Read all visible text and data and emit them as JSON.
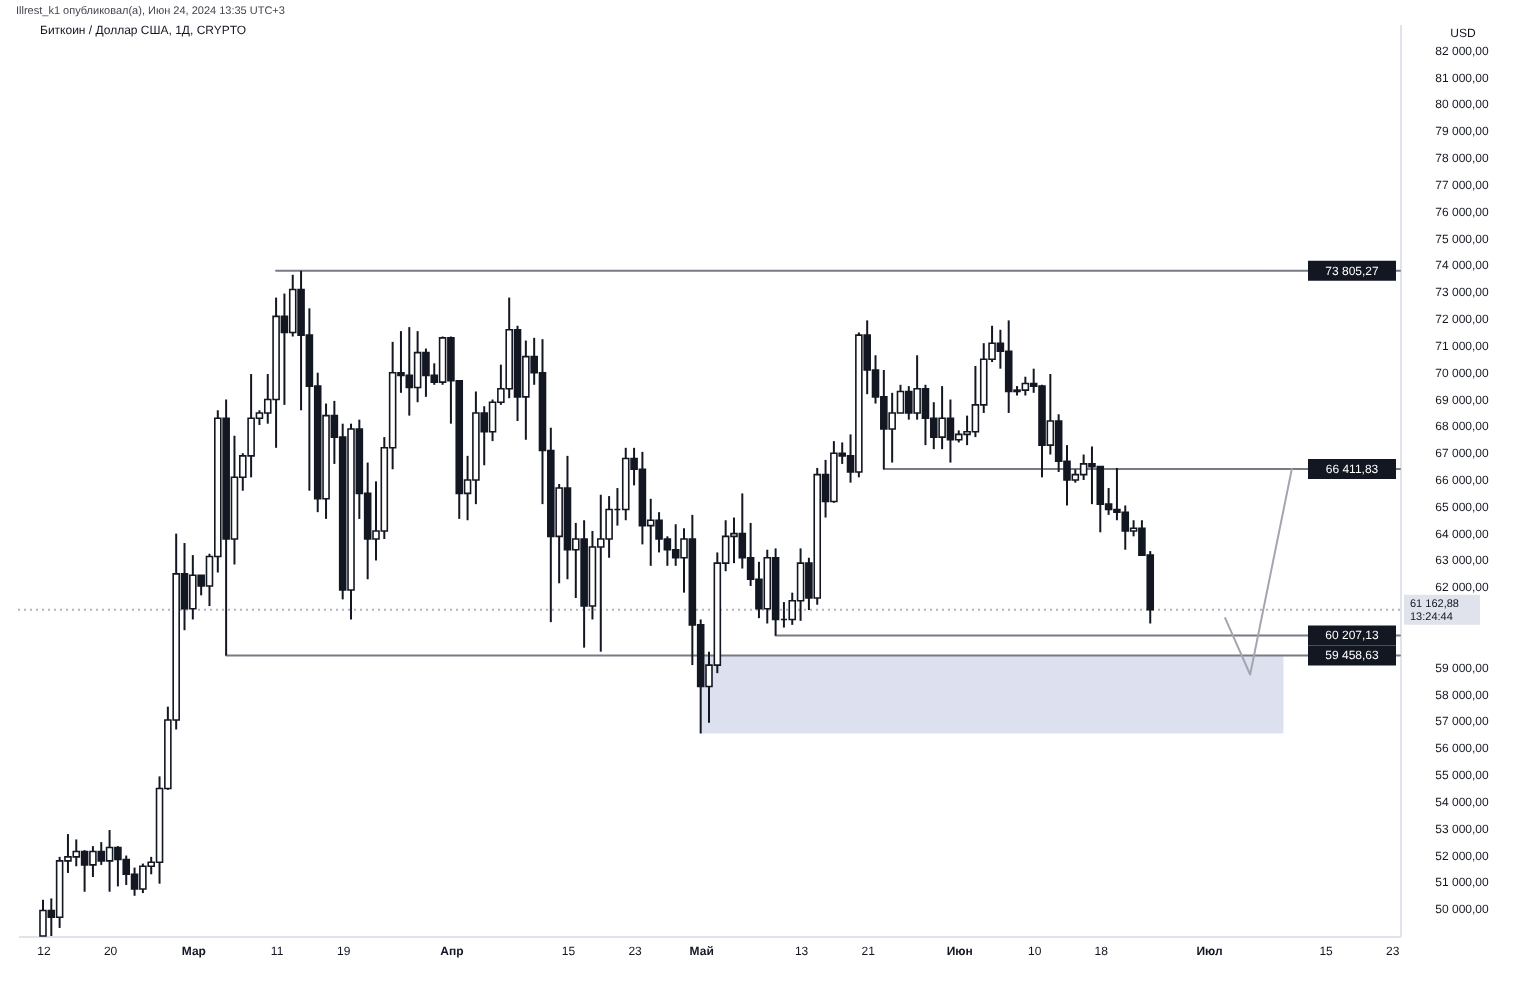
{
  "chart_data": {
    "type": "candlestick",
    "title": "Биткоин / Доллар США, 1Д, CRYPTO",
    "ylabel": "USD",
    "annotations": [
      "Illrest_k1 опубликовал(а), Июн 24, 2024 13:35 UTC+3"
    ],
    "color": "#131722",
    "x": [
      "2024-02-12",
      "2024-02-13",
      "2024-02-14",
      "2024-02-15",
      "2024-02-16",
      "2024-02-17",
      "2024-02-18",
      "2024-02-19",
      "2024-02-20",
      "2024-02-21",
      "2024-02-22",
      "2024-02-23",
      "2024-02-24",
      "2024-02-25",
      "2024-02-26",
      "2024-02-27",
      "2024-02-28",
      "2024-02-29",
      "2024-03-01",
      "2024-03-02",
      "2024-03-03",
      "2024-03-04",
      "2024-03-05",
      "2024-03-06",
      "2024-03-07",
      "2024-03-08",
      "2024-03-09",
      "2024-03-10",
      "2024-03-11",
      "2024-03-12",
      "2024-03-13",
      "2024-03-14",
      "2024-03-15",
      "2024-03-16",
      "2024-03-17",
      "2024-03-18",
      "2024-03-19",
      "2024-03-20",
      "2024-03-21",
      "2024-03-22",
      "2024-03-23",
      "2024-03-24",
      "2024-03-25",
      "2024-03-26",
      "2024-03-27",
      "2024-03-28",
      "2024-03-29",
      "2024-03-30",
      "2024-03-31",
      "2024-04-01",
      "2024-04-02",
      "2024-04-03",
      "2024-04-04",
      "2024-04-05",
      "2024-04-06",
      "2024-04-07",
      "2024-04-08",
      "2024-04-09",
      "2024-04-10",
      "2024-04-11",
      "2024-04-12",
      "2024-04-13",
      "2024-04-14",
      "2024-04-15",
      "2024-04-16",
      "2024-04-17",
      "2024-04-18",
      "2024-04-19",
      "2024-04-20",
      "2024-04-21",
      "2024-04-22",
      "2024-04-23",
      "2024-04-24",
      "2024-04-25",
      "2024-04-26",
      "2024-04-27",
      "2024-04-28",
      "2024-04-29",
      "2024-04-30",
      "2024-05-01",
      "2024-05-02",
      "2024-05-03",
      "2024-05-04",
      "2024-05-05",
      "2024-05-06",
      "2024-05-07",
      "2024-05-08",
      "2024-05-09",
      "2024-05-10",
      "2024-05-11",
      "2024-05-12",
      "2024-05-13",
      "2024-05-14",
      "2024-05-15",
      "2024-05-16",
      "2024-05-17",
      "2024-05-18",
      "2024-05-19",
      "2024-05-20",
      "2024-05-21",
      "2024-05-22",
      "2024-05-23",
      "2024-05-24",
      "2024-05-25",
      "2024-05-26",
      "2024-05-27",
      "2024-05-28",
      "2024-05-29",
      "2024-05-30",
      "2024-05-31",
      "2024-06-01",
      "2024-06-02",
      "2024-06-03",
      "2024-06-04",
      "2024-06-05",
      "2024-06-06",
      "2024-06-07",
      "2024-06-08",
      "2024-06-09",
      "2024-06-10",
      "2024-06-11",
      "2024-06-12",
      "2024-06-13",
      "2024-06-14",
      "2024-06-15",
      "2024-06-16",
      "2024-06-17",
      "2024-06-18",
      "2024-06-19",
      "2024-06-20",
      "2024-06-21",
      "2024-06-22",
      "2024-06-23",
      "2024-06-24"
    ],
    "ohlc": [
      [
        49000,
        50350,
        49000,
        49950
      ],
      [
        49950,
        50400,
        49000,
        49700
      ],
      [
        49700,
        51950,
        49300,
        51800
      ],
      [
        51800,
        52800,
        51350,
        51950
      ],
      [
        51950,
        52600,
        51600,
        52150
      ],
      [
        52150,
        52200,
        50650,
        51650
      ],
      [
        51650,
        52350,
        51200,
        52150
      ],
      [
        52150,
        52500,
        51650,
        51800
      ],
      [
        51800,
        52950,
        50650,
        52300
      ],
      [
        52300,
        52350,
        50850,
        51850
      ],
      [
        51850,
        52000,
        50900,
        51300
      ],
      [
        51300,
        51550,
        50500,
        50750
      ],
      [
        50750,
        51700,
        50600,
        51600
      ],
      [
        51600,
        51950,
        51300,
        51750
      ],
      [
        51750,
        54950,
        50950,
        54500
      ],
      [
        54500,
        57550,
        54450,
        57050
      ],
      [
        57050,
        64000,
        56700,
        62500
      ],
      [
        62500,
        63650,
        60400,
        61200
      ],
      [
        61200,
        63200,
        60800,
        62450
      ],
      [
        62450,
        62450,
        61700,
        62050
      ],
      [
        62050,
        63250,
        61300,
        63150
      ],
      [
        63150,
        68600,
        62550,
        68300
      ],
      [
        68300,
        69000,
        59460,
        63800
      ],
      [
        63800,
        67650,
        62850,
        66100
      ],
      [
        66100,
        67000,
        65600,
        66900
      ],
      [
        66900,
        69950,
        66100,
        68300
      ],
      [
        68300,
        68600,
        68050,
        68500
      ],
      [
        68500,
        69950,
        68100,
        69000
      ],
      [
        69000,
        72800,
        67200,
        72100
      ],
      [
        72100,
        72950,
        68800,
        71500
      ],
      [
        71500,
        73650,
        71350,
        73100
      ],
      [
        73100,
        73800,
        68600,
        71400
      ],
      [
        71400,
        72400,
        65600,
        69500
      ],
      [
        69500,
        70000,
        64800,
        65300
      ],
      [
        65300,
        68850,
        64550,
        68400
      ],
      [
        68400,
        68950,
        66600,
        67600
      ],
      [
        67600,
        68100,
        61550,
        61900
      ],
      [
        61900,
        68100,
        60800,
        67900
      ],
      [
        67900,
        68250,
        64550,
        65500
      ],
      [
        65500,
        66650,
        62300,
        63800
      ],
      [
        63800,
        65950,
        63000,
        64100
      ],
      [
        64100,
        67600,
        63800,
        67200
      ],
      [
        67200,
        71150,
        66400,
        70000
      ],
      [
        70000,
        71550,
        69250,
        69900
      ],
      [
        69900,
        71700,
        68400,
        69450
      ],
      [
        69450,
        71550,
        68900,
        70750
      ],
      [
        70750,
        70900,
        69100,
        69900
      ],
      [
        69900,
        70350,
        69550,
        69650
      ],
      [
        69650,
        71350,
        69550,
        71300
      ],
      [
        71300,
        71350,
        68100,
        69700
      ],
      [
        69700,
        69700,
        64550,
        65500
      ],
      [
        65500,
        66900,
        64500,
        66000
      ],
      [
        66000,
        69300,
        65100,
        68500
      ],
      [
        68500,
        68750,
        66550,
        67800
      ],
      [
        67800,
        69000,
        67450,
        68900
      ],
      [
        68900,
        70300,
        68800,
        69400
      ],
      [
        69400,
        72800,
        69050,
        71600
      ],
      [
        71600,
        71750,
        68200,
        69100
      ],
      [
        69100,
        71200,
        67500,
        70600
      ],
      [
        70600,
        71300,
        69550,
        70000
      ],
      [
        70000,
        71250,
        65100,
        67100
      ],
      [
        67100,
        67950,
        60700,
        63900
      ],
      [
        63900,
        65850,
        62150,
        65700
      ],
      [
        65700,
        66900,
        62300,
        63400
      ],
      [
        63400,
        64400,
        61600,
        63800
      ],
      [
        63800,
        64500,
        59750,
        61300
      ],
      [
        61300,
        64100,
        60800,
        63500
      ],
      [
        63500,
        65450,
        59600,
        63800
      ],
      [
        63800,
        65400,
        63100,
        64900
      ],
      [
        64900,
        65700,
        64300,
        64900
      ],
      [
        64900,
        67200,
        64500,
        66800
      ],
      [
        66800,
        67200,
        65800,
        66400
      ],
      [
        66400,
        67050,
        63600,
        64300
      ],
      [
        64300,
        65300,
        62800,
        64500
      ],
      [
        64500,
        64800,
        63300,
        63800
      ],
      [
        63800,
        63900,
        62800,
        63400
      ],
      [
        63400,
        64350,
        62800,
        63100
      ],
      [
        63100,
        64200,
        61800,
        63800
      ],
      [
        63800,
        64700,
        59100,
        60600
      ],
      [
        60600,
        60800,
        56550,
        58300
      ],
      [
        58300,
        59600,
        56950,
        59100
      ],
      [
        59100,
        63300,
        58800,
        62900
      ],
      [
        62900,
        64500,
        62600,
        63900
      ],
      [
        63900,
        64600,
        62900,
        64000
      ],
      [
        64000,
        65500,
        62700,
        63100
      ],
      [
        63100,
        64400,
        62050,
        62300
      ],
      [
        62300,
        62950,
        60850,
        61200
      ],
      [
        61200,
        63400,
        60650,
        63100
      ],
      [
        63100,
        63450,
        60200,
        60800
      ],
      [
        60800,
        61450,
        60500,
        60800
      ],
      [
        60800,
        61800,
        60600,
        61500
      ],
      [
        61500,
        63450,
        60750,
        62900
      ],
      [
        62900,
        63100,
        61150,
        61600
      ],
      [
        61600,
        66450,
        61350,
        66200
      ],
      [
        66200,
        66750,
        64600,
        65200
      ],
      [
        65200,
        67450,
        65150,
        67000
      ],
      [
        67000,
        67400,
        66600,
        66900
      ],
      [
        66900,
        67700,
        65900,
        66300
      ],
      [
        66300,
        71500,
        66100,
        71400
      ],
      [
        71400,
        71950,
        69200,
        70100
      ],
      [
        70100,
        70650,
        68850,
        69100
      ],
      [
        69100,
        70100,
        66400,
        67900
      ],
      [
        67900,
        69250,
        66650,
        68500
      ],
      [
        68500,
        69550,
        68500,
        69300
      ],
      [
        69300,
        69500,
        68250,
        68500
      ],
      [
        68500,
        70650,
        68250,
        69400
      ],
      [
        69400,
        69550,
        67300,
        68300
      ],
      [
        68300,
        68900,
        67150,
        67600
      ],
      [
        67600,
        69500,
        67150,
        68300
      ],
      [
        68300,
        69000,
        66650,
        67500
      ],
      [
        67500,
        67850,
        67400,
        67700
      ],
      [
        67700,
        68400,
        67300,
        67800
      ],
      [
        67800,
        70250,
        67600,
        68800
      ],
      [
        68800,
        71100,
        68500,
        70500
      ],
      [
        70500,
        71750,
        70400,
        71100
      ],
      [
        71100,
        71600,
        70150,
        70800
      ],
      [
        70800,
        71950,
        68500,
        69300
      ],
      [
        69300,
        69500,
        69150,
        69350
      ],
      [
        69350,
        69850,
        69150,
        69600
      ],
      [
        69600,
        70150,
        69250,
        69500
      ],
      [
        69500,
        69550,
        66100,
        67300
      ],
      [
        67300,
        69950,
        66950,
        68200
      ],
      [
        68200,
        68450,
        66300,
        66700
      ],
      [
        66700,
        67300,
        65050,
        66000
      ],
      [
        66000,
        66400,
        65900,
        66200
      ],
      [
        66200,
        66950,
        66000,
        66600
      ],
      [
        66600,
        67250,
        65100,
        66500
      ],
      [
        66500,
        66500,
        64050,
        65100
      ],
      [
        65100,
        65700,
        64700,
        64900
      ],
      [
        64900,
        66450,
        64500,
        64800
      ],
      [
        64800,
        65050,
        63400,
        64100
      ],
      [
        64100,
        64500,
        63900,
        64200
      ],
      [
        64200,
        64500,
        63200,
        63200
      ],
      [
        63200,
        63350,
        60650,
        61162.88
      ]
    ],
    "series": [
      {
        "type": "line",
        "color": "#787b86",
        "x": [
          "2024-03-11",
          "2024-07-24"
        ],
        "values": [
          73805.27,
          73805.27
        ],
        "value_labels": [
          null,
          "73 805,27"
        ]
      },
      {
        "type": "line",
        "color": "#787b86",
        "x": [
          "2024-05-23",
          "2024-07-24"
        ],
        "values": [
          66411.83,
          66411.83
        ],
        "value_labels": [
          null,
          "66 411,83"
        ]
      },
      {
        "type": "line",
        "color": "#787b86",
        "x": [
          "2024-05-10",
          "2024-07-24"
        ],
        "values": [
          60207.13,
          60207.13
        ],
        "value_labels": [
          null,
          "60 207,13"
        ]
      },
      {
        "type": "line",
        "color": "#787b86",
        "x": [
          "2024-03-05",
          "2024-05-01",
          "2024-07-10",
          "2024-07-24"
        ],
        "values": [
          59458.63,
          59458.63,
          59458.63,
          59458.63
        ],
        "lower": [
          null,
          56550,
          56550,
          null
        ],
        "upper": [
          null,
          59458.63,
          59458.63,
          null
        ],
        "value_labels": [
          null,
          null,
          null,
          "59 458,63"
        ]
      },
      {
        "type": "line",
        "color": "#a3a6af",
        "x": [
          "2024-07-03",
          "2024-07-06",
          "2024-07-11"
        ],
        "values": [
          60850,
          58750,
          66400
        ]
      }
    ],
    "ref_lines": [
      {
        "axis": "y",
        "value": 61162.88,
        "label": "61 162,88\n13:24:44",
        "color": "#b2b5be",
        "line_style": "dotted"
      }
    ],
    "xlim": [
      "2024-02-09",
      "2024-07-24"
    ],
    "xticks": [
      {
        "value": "2024-02-12",
        "label": "12"
      },
      {
        "value": "2024-02-20",
        "label": "20"
      },
      {
        "value": "2024-03-01",
        "label": "Мар"
      },
      {
        "value": "2024-03-11",
        "label": "11"
      },
      {
        "value": "2024-03-19",
        "label": "19"
      },
      {
        "value": "2024-04-01",
        "label": "Апр"
      },
      {
        "value": "2024-04-15",
        "label": "15"
      },
      {
        "value": "2024-04-23",
        "label": "23"
      },
      {
        "value": "2024-05-01",
        "label": "Май"
      },
      {
        "value": "2024-05-13",
        "label": "13"
      },
      {
        "value": "2024-05-21",
        "label": "21"
      },
      {
        "value": "2024-06-01",
        "label": "Июн"
      },
      {
        "value": "2024-06-10",
        "label": "10"
      },
      {
        "value": "2024-06-18",
        "label": "18"
      },
      {
        "value": "2024-07-01",
        "label": "Июл"
      },
      {
        "value": "2024-07-15",
        "label": "15"
      },
      {
        "value": "2024-07-23",
        "label": "23"
      }
    ],
    "ylim": [
      49000,
      83000
    ],
    "yticks": [
      {
        "value": 50000,
        "label": "50 000,00"
      },
      {
        "value": 51000,
        "label": "51 000,00"
      },
      {
        "value": 52000,
        "label": "52 000,00"
      },
      {
        "value": 53000,
        "label": "53 000,00"
      },
      {
        "value": 54000,
        "label": "54 000,00"
      },
      {
        "value": 55000,
        "label": "55 000,00"
      },
      {
        "value": 56000,
        "label": "56 000,00"
      },
      {
        "value": 57000,
        "label": "57 000,00"
      },
      {
        "value": 58000,
        "label": "58 000,00"
      },
      {
        "value": 59000,
        "label": "59 000,00"
      },
      {
        "value": 62000,
        "label": "62 000,00"
      },
      {
        "value": 63000,
        "label": "63 000,00"
      },
      {
        "value": 64000,
        "label": "64 000,00"
      },
      {
        "value": 65000,
        "label": "65 000,00"
      },
      {
        "value": 66000,
        "label": "66 000,00"
      },
      {
        "value": 67000,
        "label": "67 000,00"
      },
      {
        "value": 68000,
        "label": "68 000,00"
      },
      {
        "value": 69000,
        "label": "69 000,00"
      },
      {
        "value": 70000,
        "label": "70 000,00"
      },
      {
        "value": 71000,
        "label": "71 000,00"
      },
      {
        "value": 72000,
        "label": "72 000,00"
      },
      {
        "value": 73000,
        "label": "73 000,00"
      },
      {
        "value": 74000,
        "label": "74 000,00"
      },
      {
        "value": 75000,
        "label": "75 000,00"
      },
      {
        "value": 76000,
        "label": "76 000,00"
      },
      {
        "value": 77000,
        "label": "77 000,00"
      },
      {
        "value": 78000,
        "label": "78 000,00"
      },
      {
        "value": 79000,
        "label": "79 000,00"
      },
      {
        "value": 80000,
        "label": "80 000,00"
      },
      {
        "value": 81000,
        "label": "81 000,00"
      },
      {
        "value": 82000,
        "label": "82 000,00"
      }
    ]
  }
}
